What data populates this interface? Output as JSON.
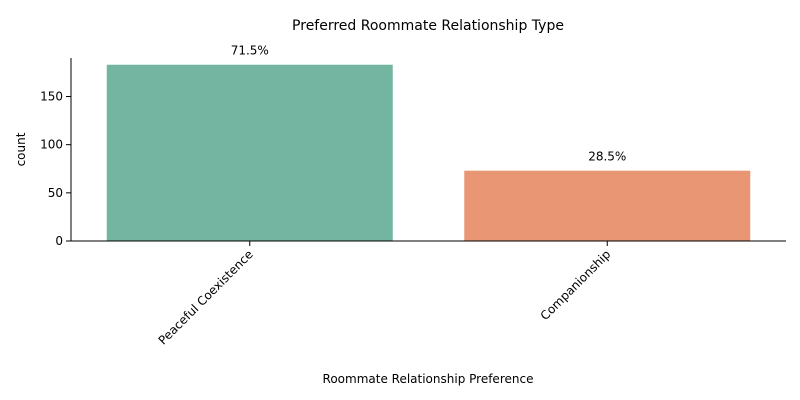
{
  "chart_data": {
    "type": "bar",
    "title": "Preferred Roommate Relationship Type",
    "xlabel": "Roommate Relationship Preference",
    "ylabel": "count",
    "categories": [
      "Peaceful Coexistence",
      "Companionship"
    ],
    "values": [
      183,
      73
    ],
    "data_labels": [
      "71.5%",
      "28.5%"
    ],
    "colors": [
      "#73b5a0",
      "#e89673"
    ],
    "ylim": [
      0,
      190
    ],
    "yticks": [
      0,
      50,
      100,
      150
    ],
    "grid": false,
    "legend": "none"
  }
}
